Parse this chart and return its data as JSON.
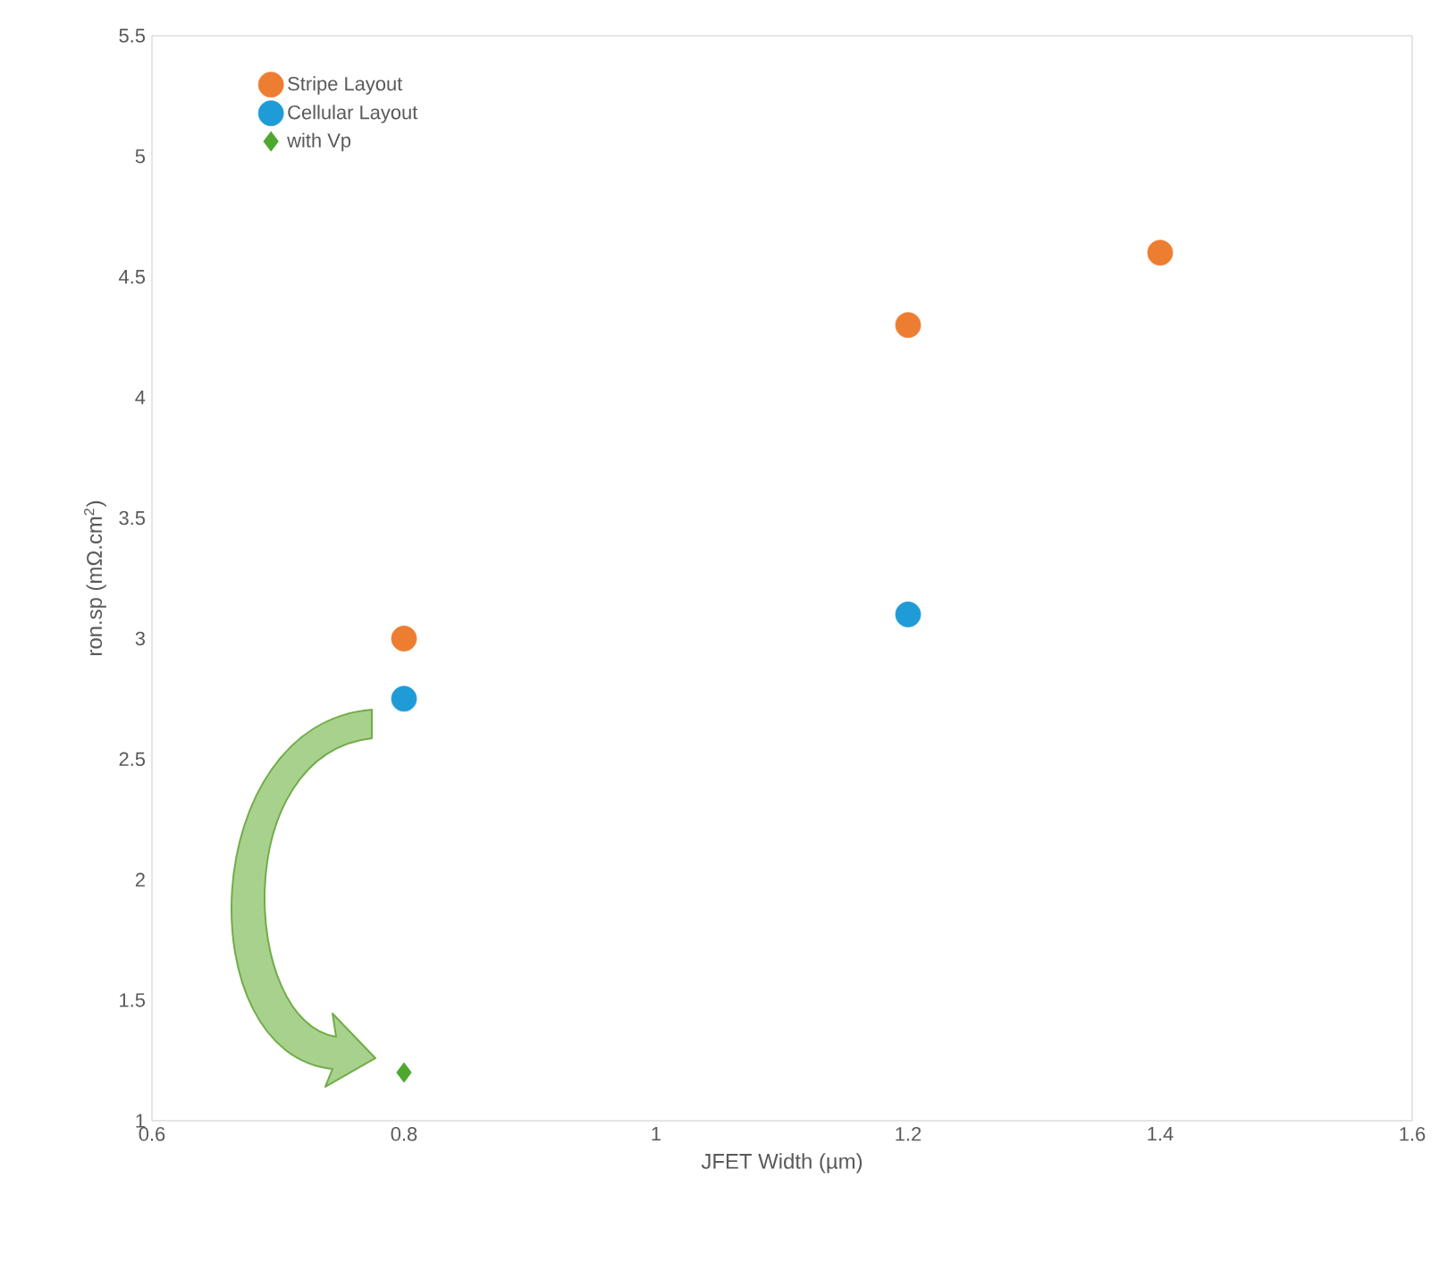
{
  "chart_data": {
    "type": "scatter",
    "xlabel": "JFET Width (µm)",
    "ylabel": "ron.sp (mΩ.cm$^{2}$)",
    "xlim": [
      0.6,
      1.6
    ],
    "xticks": [
      0.6,
      0.8,
      1,
      1.2,
      1.4,
      1.6
    ],
    "ylim": [
      1,
      5.5
    ],
    "yticks": [
      1,
      1.5,
      2,
      2.5,
      3,
      3.5,
      4,
      4.5,
      5,
      5.5
    ],
    "grid": false,
    "legend": "top left",
    "series": [
      {
        "name": "Stripe Layout",
        "color": "#ed7d31",
        "marker": "circle",
        "x": [
          0.8,
          1.2,
          1.4
        ],
        "values": [
          3.0,
          4.3,
          4.6
        ]
      },
      {
        "name": "Cellular Layout",
        "color": "#1f9bd7",
        "marker": "circle",
        "x": [
          0.8,
          1.2
        ],
        "values": [
          2.75,
          3.1
        ]
      },
      {
        "name": "with Vp",
        "color": "#4ea72e",
        "marker": "diamond",
        "x": [
          0.8
        ],
        "values": [
          1.2
        ]
      }
    ]
  }
}
